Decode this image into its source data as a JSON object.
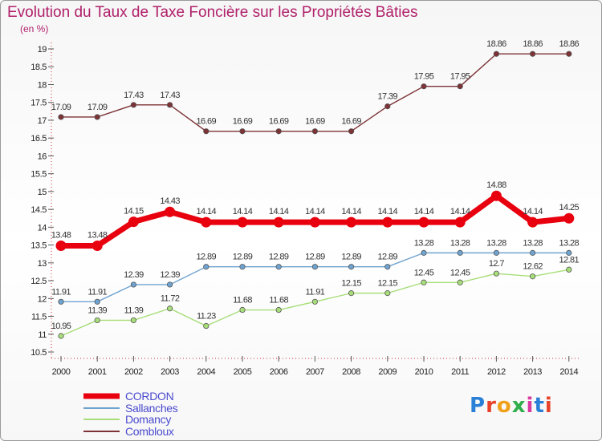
{
  "title": "Evolution du Taux de Taxe Foncière sur les Propriétés Bâties",
  "subtitle": "(en %)",
  "logo": {
    "text": "Proxiti",
    "colors": [
      "#2a7fd6",
      "#e8432a",
      "#f0a019",
      "#2fae4a",
      "#d93aa0",
      "#2a7fd6",
      "#e8432a"
    ]
  },
  "chart_data": {
    "type": "line",
    "title": "Evolution du Taux de Taxe Foncière sur les Propriétés Bâties",
    "subtitle": "(en %)",
    "x": [
      "2000",
      "2001",
      "2002",
      "2003",
      "2004",
      "2005",
      "2006",
      "2007",
      "2008",
      "2009",
      "2010",
      "2011",
      "2012",
      "2013",
      "2014"
    ],
    "yticks": [
      "10.5",
      "11",
      "11.5",
      "12",
      "12.5",
      "13",
      "13.5",
      "14",
      "14.5",
      "15",
      "15.5",
      "16",
      "16.5",
      "17",
      "17.5",
      "18",
      "18.5",
      "19"
    ],
    "ylim": [
      10.5,
      19
    ],
    "grid": false,
    "legend_position": "bottom-left",
    "series": [
      {
        "name": "CORDON",
        "color": "#e8000e",
        "values": [
          13.48,
          13.48,
          14.15,
          14.43,
          14.14,
          14.14,
          14.14,
          14.14,
          14.14,
          14.14,
          14.14,
          14.14,
          14.88,
          14.14,
          14.25
        ],
        "labels": [
          "13.48",
          "13.48",
          "14.15",
          "14.43",
          "14.14",
          "14.14",
          "14.14",
          "14.14",
          "14.14",
          "14.14",
          "14.14",
          "14.14",
          "14.88",
          "14.14",
          "14.25"
        ]
      },
      {
        "name": "Sallanches",
        "color": "#6fa3d0",
        "values": [
          11.91,
          11.91,
          12.39,
          12.39,
          12.89,
          12.89,
          12.89,
          12.89,
          12.89,
          12.89,
          13.28,
          13.28,
          13.28,
          13.28,
          13.28
        ],
        "labels": [
          "11.91",
          "11.91",
          "12.39",
          "12.39",
          "12.89",
          "12.89",
          "12.89",
          "12.89",
          "12.89",
          "12.89",
          "13.28",
          "13.28",
          "13.28",
          "13.28",
          "13.28"
        ]
      },
      {
        "name": "Domancy",
        "color": "#a8de7a",
        "values": [
          10.95,
          11.39,
          11.39,
          11.72,
          11.23,
          11.68,
          11.68,
          11.91,
          12.15,
          12.15,
          12.45,
          12.45,
          12.7,
          12.62,
          12.81
        ],
        "labels": [
          "10.95",
          "11.39",
          "11.39",
          "11.72",
          "11.23",
          "11.68",
          "11.68",
          "11.91",
          "12.15",
          "12.15",
          "12.45",
          "12.45",
          "12.7",
          "12.62",
          "12.81"
        ]
      },
      {
        "name": "Combloux",
        "color": "#7d3236",
        "values": [
          17.09,
          17.09,
          17.43,
          17.43,
          16.69,
          16.69,
          16.69,
          16.69,
          16.69,
          17.39,
          17.95,
          17.95,
          18.86,
          18.86,
          18.86
        ],
        "labels": [
          "17.09",
          "17.09",
          "17.43",
          "17.43",
          "16.69",
          "16.69",
          "16.69",
          "16.69",
          "16.69",
          "17.39",
          "17.95",
          "17.95",
          "18.86",
          "18.86",
          "18.86"
        ]
      }
    ]
  }
}
